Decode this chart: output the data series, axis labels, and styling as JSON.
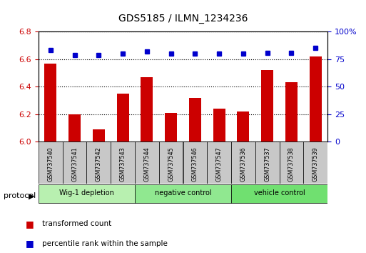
{
  "title": "GDS5185 / ILMN_1234236",
  "samples": [
    "GSM737540",
    "GSM737541",
    "GSM737542",
    "GSM737543",
    "GSM737544",
    "GSM737545",
    "GSM737546",
    "GSM737547",
    "GSM737536",
    "GSM737537",
    "GSM737538",
    "GSM737539"
  ],
  "red_values": [
    6.57,
    6.2,
    6.09,
    6.35,
    6.47,
    6.21,
    6.32,
    6.24,
    6.22,
    6.52,
    6.43,
    6.62
  ],
  "blue_values": [
    83,
    79,
    79,
    80,
    82,
    80,
    80,
    80,
    80,
    81,
    81,
    85
  ],
  "ylim_left": [
    6.0,
    6.8
  ],
  "ylim_right": [
    0,
    100
  ],
  "yticks_left": [
    6.0,
    6.2,
    6.4,
    6.6,
    6.8
  ],
  "yticks_right": [
    0,
    25,
    50,
    75,
    100
  ],
  "groups": [
    {
      "label": "Wig-1 depletion",
      "start": 0,
      "end": 4,
      "color": "#b8f0b0"
    },
    {
      "label": "negative control",
      "start": 4,
      "end": 8,
      "color": "#90e890"
    },
    {
      "label": "vehicle control",
      "start": 8,
      "end": 12,
      "color": "#70e070"
    }
  ],
  "bar_color": "#cc0000",
  "dot_color": "#0000cc",
  "bar_width": 0.5,
  "grid_color": "#000000",
  "bg_color": "#ffffff",
  "tick_label_color_left": "#cc0000",
  "tick_label_color_right": "#0000cc",
  "legend_red_label": "transformed count",
  "legend_blue_label": "percentile rank within the sample",
  "protocol_label": "protocol",
  "sample_box_color": "#c8c8c8"
}
